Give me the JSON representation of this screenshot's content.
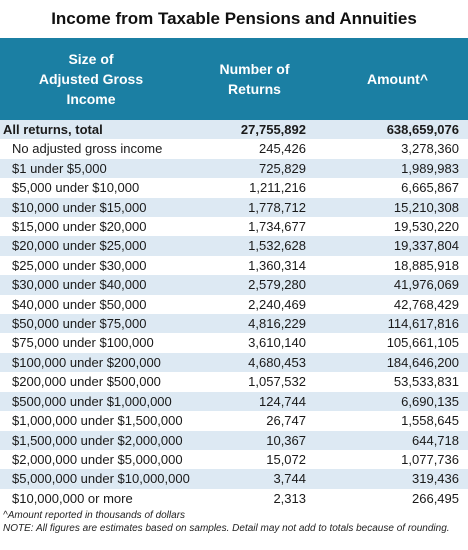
{
  "title": "Income from Taxable Pensions and Annuities",
  "chart_data": {
    "type": "table",
    "columns": [
      "Size of\nAdjusted Gross\nIncome",
      "Number of\nReturns",
      "Amount^"
    ],
    "rows": [
      {
        "label": "All returns, total",
        "returns": "27,755,892",
        "amount": "638,659,076",
        "total": true
      },
      {
        "label": "No adjusted gross income",
        "returns": "245,426",
        "amount": "3,278,360"
      },
      {
        "label": "$1 under $5,000",
        "returns": "725,829",
        "amount": "1,989,983"
      },
      {
        "label": "$5,000 under $10,000",
        "returns": "1,211,216",
        "amount": "6,665,867"
      },
      {
        "label": "$10,000 under $15,000",
        "returns": "1,778,712",
        "amount": "15,210,308"
      },
      {
        "label": "$15,000 under $20,000",
        "returns": "1,734,677",
        "amount": "19,530,220"
      },
      {
        "label": "$20,000 under $25,000",
        "returns": "1,532,628",
        "amount": "19,337,804"
      },
      {
        "label": "$25,000 under $30,000",
        "returns": "1,360,314",
        "amount": "18,885,918"
      },
      {
        "label": "$30,000 under $40,000",
        "returns": "2,579,280",
        "amount": "41,976,069"
      },
      {
        "label": "$40,000 under $50,000",
        "returns": "2,240,469",
        "amount": "42,768,429"
      },
      {
        "label": "$50,000 under $75,000",
        "returns": "4,816,229",
        "amount": "114,617,816"
      },
      {
        "label": "$75,000 under $100,000",
        "returns": "3,610,140",
        "amount": "105,661,105"
      },
      {
        "label": "$100,000 under $200,000",
        "returns": "4,680,453",
        "amount": "184,646,200"
      },
      {
        "label": "$200,000 under $500,000",
        "returns": "1,057,532",
        "amount": "53,533,831"
      },
      {
        "label": "$500,000 under $1,000,000",
        "returns": "124,744",
        "amount": "6,690,135"
      },
      {
        "label": "$1,000,000 under $1,500,000",
        "returns": "26,747",
        "amount": "1,558,645"
      },
      {
        "label": "$1,500,000 under $2,000,000",
        "returns": "10,367",
        "amount": "644,718"
      },
      {
        "label": "$2,000,000 under $5,000,000",
        "returns": "15,072",
        "amount": "1,077,736"
      },
      {
        "label": "$5,000,000 under $10,000,000",
        "returns": "3,744",
        "amount": "319,436"
      },
      {
        "label": "$10,000,000 or more",
        "returns": "2,313",
        "amount": "266,495"
      }
    ]
  },
  "footnotes": {
    "amount_note": "^Amount reported in thousands of dollars",
    "general_note": "NOTE: All figures are estimates based on samples. Detail may not add to totals because of rounding."
  },
  "colors": {
    "header_bg": "#1b7fa3",
    "stripe": "#dde9f3"
  }
}
